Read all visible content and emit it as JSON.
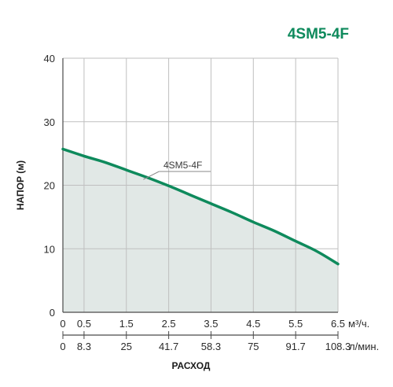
{
  "chart_data": {
    "type": "area",
    "title": "4SM5-4F",
    "ylabel": "НАПОР (м)",
    "xlabel": "РАСХОД",
    "ylim": [
      0,
      40
    ],
    "yticks": [
      "0",
      "10",
      "20",
      "30",
      "40"
    ],
    "xlim": [
      0,
      6.5
    ],
    "x_primary": {
      "ticks": [
        "0",
        "0.5",
        "1.5",
        "2.5",
        "3.5",
        "4.5",
        "5.5",
        "6.5"
      ],
      "unit": "м³/ч."
    },
    "x_secondary": {
      "ticks": [
        "0",
        "8.3",
        "25",
        "41.7",
        "58.3",
        "75",
        "91.7",
        "108.3"
      ],
      "unit": "л/мин."
    },
    "series": [
      {
        "name": "4SM5-4F",
        "x": [
          0,
          0.5,
          1.0,
          1.5,
          2.0,
          2.5,
          3.0,
          3.5,
          4.0,
          4.5,
          5.0,
          5.5,
          6.0,
          6.5
        ],
        "y": [
          25.7,
          24.6,
          23.6,
          22.4,
          21.2,
          19.9,
          18.5,
          17.1,
          15.7,
          14.2,
          12.8,
          11.2,
          9.6,
          7.6
        ]
      }
    ],
    "grid": true,
    "colors": {
      "curve": "#0e8a5c",
      "fill": "#e1e8e6",
      "title": "#0e8a5c",
      "grid": "#bfbfbf",
      "axis": "#4a4a4a"
    }
  }
}
